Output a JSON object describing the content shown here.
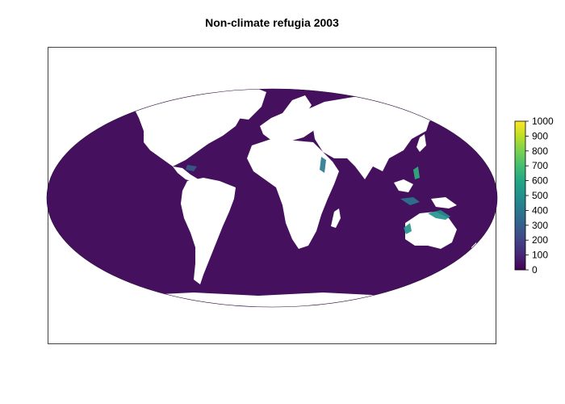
{
  "title": "Non-climate refugia 2003",
  "legend": {
    "ticks": [
      "0",
      "100",
      "200",
      "300",
      "400",
      "500",
      "600",
      "700",
      "800",
      "900",
      "1000"
    ],
    "min": 0,
    "max": 1000,
    "colors": [
      "#440154",
      "#482576",
      "#414487",
      "#35608d",
      "#2a788e",
      "#21918c",
      "#22a884",
      "#43bf71",
      "#7ad151",
      "#bddf26",
      "#fde725"
    ]
  },
  "colors": {
    "ocean": "#45105d",
    "land": "#ffffff",
    "hotspot": "#21918c",
    "hotspot_light": "#2fb47c"
  }
}
